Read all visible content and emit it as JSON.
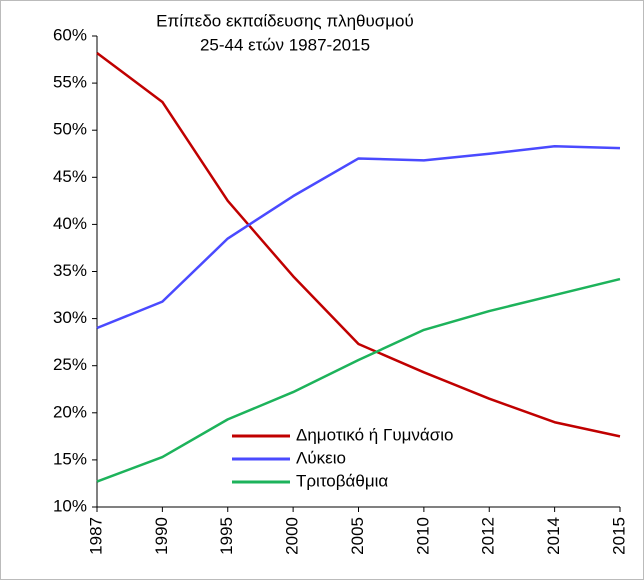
{
  "chart_data": {
    "type": "line",
    "title": "Επίπεδο εκπαίδευσης πληθυσμού",
    "subtitle": "25-44 ετών 1987-2015",
    "categories": [
      "1987",
      "1990",
      "1995",
      "2000",
      "2005",
      "2010",
      "2012",
      "2014",
      "2015"
    ],
    "series": [
      {
        "name": "Δημοτικό ή Γυμνάσιο",
        "color": "#c00000",
        "values": [
          58.2,
          53,
          42.5,
          34.5,
          27.3,
          24.3,
          21.5,
          19,
          17.5
        ]
      },
      {
        "name": "Λύκειο",
        "color": "#4a4aff",
        "values": [
          29,
          31.8,
          38.5,
          43,
          47,
          46.8,
          47.5,
          48.3,
          48.1
        ]
      },
      {
        "name": "Τριτοβάθμια",
        "color": "#1db35b",
        "values": [
          12.7,
          15.3,
          19.3,
          22.2,
          25.6,
          28.8,
          30.8,
          32.5,
          34.2
        ]
      }
    ],
    "ylim": [
      10,
      60
    ],
    "yticks": [
      {
        "value": 10,
        "label": "10%"
      },
      {
        "value": 15,
        "label": "15%"
      },
      {
        "value": 20,
        "label": "20%"
      },
      {
        "value": 25,
        "label": "25%"
      },
      {
        "value": 30,
        "label": "30%"
      },
      {
        "value": 35,
        "label": "35%"
      },
      {
        "value": 40,
        "label": "40%"
      },
      {
        "value": 45,
        "label": "45%"
      },
      {
        "value": 50,
        "label": "50%"
      },
      {
        "value": 55,
        "label": "55%"
      },
      {
        "value": 60,
        "label": "60%"
      }
    ],
    "grid": false
  }
}
